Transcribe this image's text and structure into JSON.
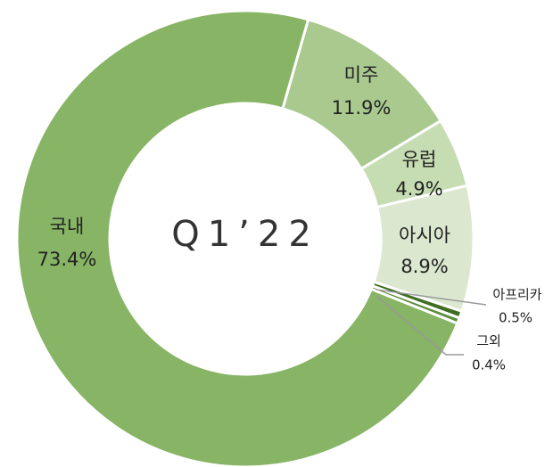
{
  "chart_data": {
    "type": "donut",
    "center_label": "Q1’22",
    "categories": [
      "미주",
      "유럽",
      "아시아",
      "아프리카",
      "그외",
      "국내"
    ],
    "values": [
      11.9,
      4.9,
      8.9,
      0.5,
      0.4,
      73.4
    ],
    "value_labels": [
      "11.9%",
      "4.9%",
      "8.9%",
      "0.5%",
      "0.4%",
      "73.4%"
    ],
    "colors": [
      "#a9c98f",
      "#c6ddb3",
      "#dbe8cf",
      "#3f6d22",
      "#5e8e3c",
      "#87b465"
    ]
  }
}
